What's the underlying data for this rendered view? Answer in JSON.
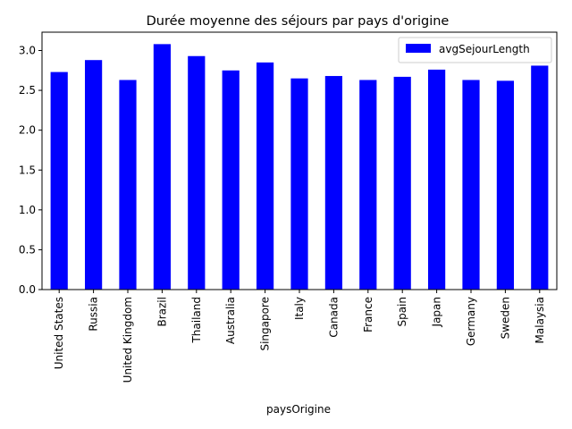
{
  "chart_data": {
    "type": "bar",
    "title": "Durée moyenne des séjours par pays d'origine",
    "xlabel": "paysOrigine",
    "ylabel": "",
    "categories": [
      "United States",
      "Russia",
      "United Kingdom",
      "Brazil",
      "Thailand",
      "Australia",
      "Singapore",
      "Italy",
      "Canada",
      "France",
      "Spain",
      "Japan",
      "Germany",
      "Sweden",
      "Malaysia"
    ],
    "series": [
      {
        "name": "avgSejourLength",
        "color": "#0000ff",
        "values": [
          2.73,
          2.88,
          2.63,
          3.08,
          2.93,
          2.75,
          2.85,
          2.65,
          2.68,
          2.63,
          2.67,
          2.76,
          2.63,
          2.62,
          2.81
        ]
      }
    ],
    "ylim": [
      0,
      3.23
    ],
    "yticks": [
      0.0,
      0.5,
      1.0,
      1.5,
      2.0,
      2.5,
      3.0
    ],
    "ytick_labels": [
      "0.0",
      "0.5",
      "1.0",
      "1.5",
      "2.0",
      "2.5",
      "3.0"
    ],
    "legend_position": "top-right",
    "grid": false
  }
}
